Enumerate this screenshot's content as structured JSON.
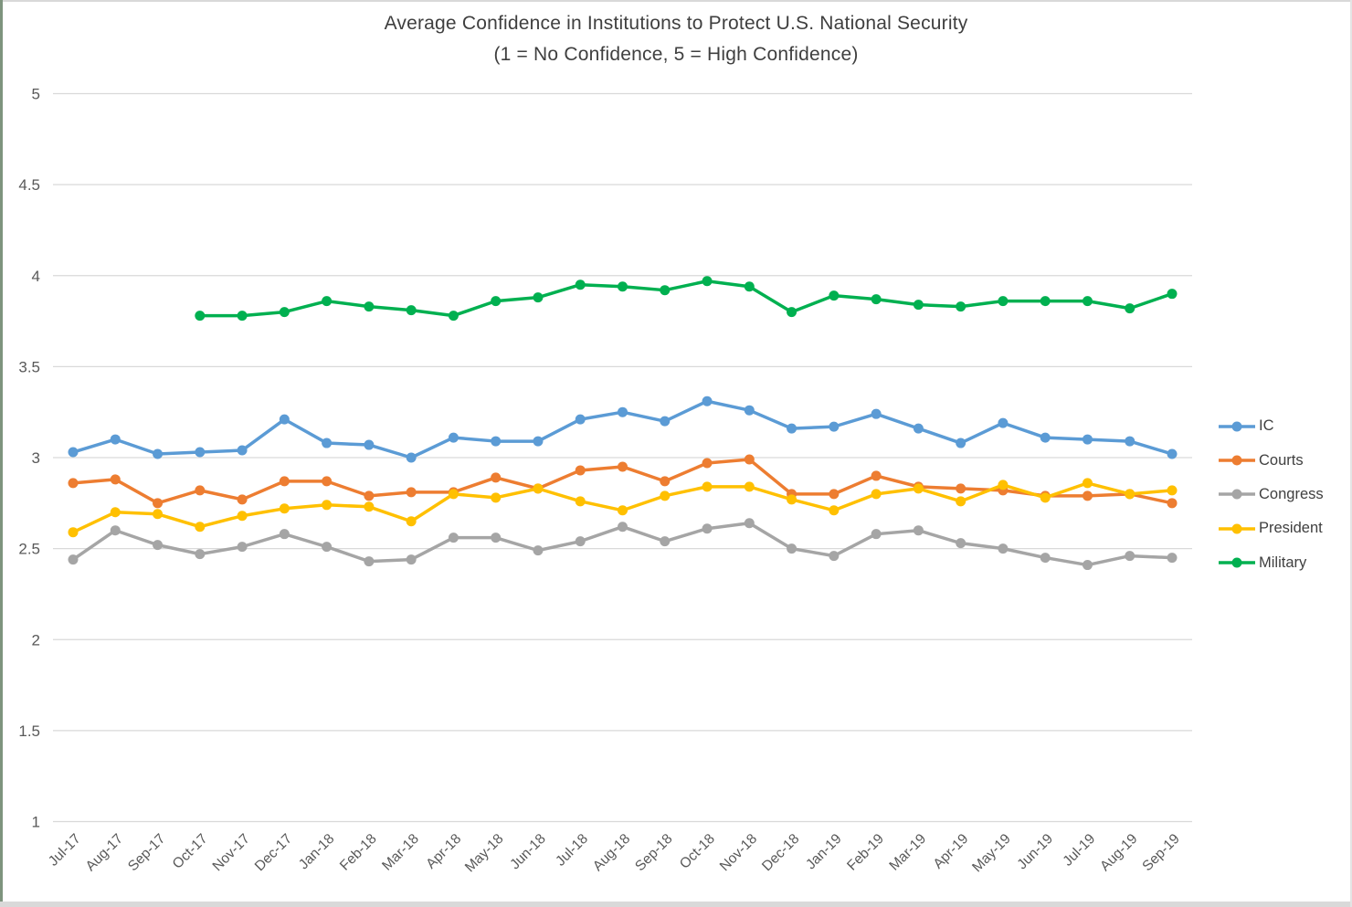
{
  "title": {
    "line1": "Average Confidence in Institutions to Protect U.S. National Security",
    "line2": "(1 = No Confidence, 5 = High Confidence)"
  },
  "colors": {
    "gridline": "#D9D9D9",
    "axis_text": "#595959",
    "title_text": "#3F3F3F",
    "frame_left": "#7E947E",
    "frame_edge": "#D9D9D9"
  },
  "axis": {
    "y_tick_labels": [
      "5",
      "4.5",
      "4",
      "3.5",
      "3",
      "2.5",
      "2",
      "1.5",
      "1"
    ]
  },
  "chart_data": {
    "type": "line",
    "title": "Average Confidence in Institutions to Protect U.S. National Security",
    "subtitle": "(1 = No Confidence, 5 = High Confidence)",
    "grid": true,
    "legend_position": "right",
    "marker": "circle",
    "ylim": [
      1,
      5
    ],
    "ytick_step": 0.5,
    "categories": [
      "Jul-17",
      "Aug-17",
      "Sep-17",
      "Oct-17",
      "Nov-17",
      "Dec-17",
      "Jan-18",
      "Feb-18",
      "Mar-18",
      "Apr-18",
      "May-18",
      "Jun-18",
      "Jul-18",
      "Aug-18",
      "Sep-18",
      "Oct-18",
      "Nov-18",
      "Dec-18",
      "Jan-19",
      "Feb-19",
      "Mar-19",
      "Apr-19",
      "May-19",
      "Jun-19",
      "Jul-19",
      "Aug-19",
      "Sep-19"
    ],
    "series": [
      {
        "name": "IC",
        "color": "#5B9BD5",
        "values": [
          3.03,
          3.1,
          3.02,
          3.03,
          3.04,
          3.21,
          3.08,
          3.07,
          3.0,
          3.11,
          3.09,
          3.09,
          3.21,
          3.25,
          3.2,
          3.31,
          3.26,
          3.16,
          3.17,
          3.24,
          3.16,
          3.08,
          3.19,
          3.11,
          3.1,
          3.09,
          3.02
        ]
      },
      {
        "name": "Courts",
        "color": "#ED7D31",
        "values": [
          2.86,
          2.88,
          2.75,
          2.82,
          2.77,
          2.87,
          2.87,
          2.79,
          2.81,
          2.81,
          2.89,
          2.83,
          2.93,
          2.95,
          2.87,
          2.97,
          2.99,
          2.8,
          2.8,
          2.9,
          2.84,
          2.83,
          2.82,
          2.79,
          2.79,
          2.8,
          2.75
        ]
      },
      {
        "name": "Congress",
        "color": "#A5A5A5",
        "values": [
          2.44,
          2.6,
          2.52,
          2.47,
          2.51,
          2.58,
          2.51,
          2.43,
          2.44,
          2.56,
          2.56,
          2.49,
          2.54,
          2.62,
          2.54,
          2.61,
          2.64,
          2.5,
          2.46,
          2.58,
          2.6,
          2.53,
          2.5,
          2.45,
          2.41,
          2.46,
          2.45
        ]
      },
      {
        "name": "President",
        "color": "#FFC000",
        "values": [
          2.59,
          2.7,
          2.69,
          2.62,
          2.68,
          2.72,
          2.74,
          2.73,
          2.65,
          2.8,
          2.78,
          2.83,
          2.76,
          2.71,
          2.79,
          2.84,
          2.84,
          2.77,
          2.71,
          2.8,
          2.83,
          2.76,
          2.85,
          2.78,
          2.86,
          2.8,
          2.82
        ]
      },
      {
        "name": "Military",
        "color": "#00B050",
        "values": [
          null,
          null,
          null,
          3.78,
          3.78,
          3.8,
          3.86,
          3.83,
          3.81,
          3.78,
          3.86,
          3.88,
          3.95,
          3.94,
          3.92,
          3.97,
          3.94,
          3.8,
          3.89,
          3.87,
          3.84,
          3.83,
          3.86,
          3.86,
          3.86,
          3.82,
          3.9
        ]
      }
    ]
  }
}
